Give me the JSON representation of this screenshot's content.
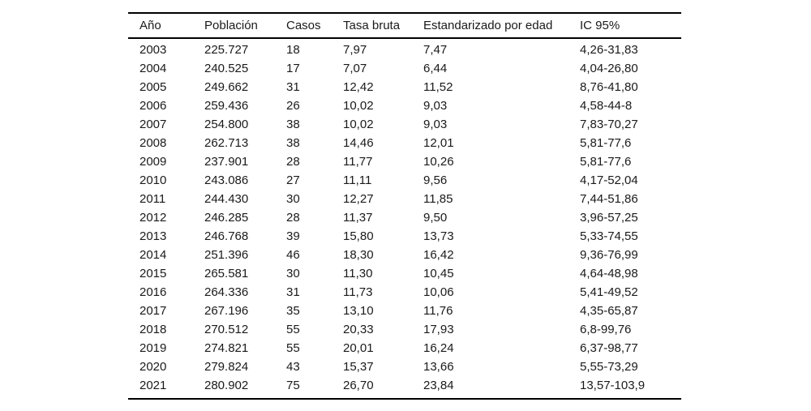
{
  "page": {
    "background_color": "#ffffff",
    "text_color": "#1a1a1a",
    "rule_color": "#000000"
  },
  "table": {
    "columns": [
      "Año",
      "Población",
      "Casos",
      "Tasa bruta",
      "Estandarizado por edad",
      "IC 95%"
    ],
    "rows": [
      [
        "2003",
        "225.727",
        "18",
        "7,97",
        "7,47",
        "4,26-31,83"
      ],
      [
        "2004",
        "240.525",
        "17",
        "7,07",
        "6,44",
        "4,04-26,80"
      ],
      [
        "2005",
        "249.662",
        "31",
        "12,42",
        "11,52",
        "8,76-41,80"
      ],
      [
        "2006",
        "259.436",
        "26",
        "10,02",
        "9,03",
        "4,58-44-8"
      ],
      [
        "2007",
        "254.800",
        "38",
        "10,02",
        "9,03",
        "7,83-70,27"
      ],
      [
        "2008",
        "262.713",
        "38",
        "14,46",
        "12,01",
        "5,81-77,6"
      ],
      [
        "2009",
        "237.901",
        "28",
        "11,77",
        "10,26",
        "5,81-77,6"
      ],
      [
        "2010",
        "243.086",
        "27",
        "11,11",
        "9,56",
        "4,17-52,04"
      ],
      [
        "2011",
        "244.430",
        "30",
        "12,27",
        "11,85",
        "7,44-51,86"
      ],
      [
        "2012",
        "246.285",
        "28",
        "11,37",
        "9,50",
        "3,96-57,25"
      ],
      [
        "2013",
        "246.768",
        "39",
        "15,80",
        "13,73",
        "5,33-74,55"
      ],
      [
        "2014",
        "251.396",
        "46",
        "18,30",
        "16,42",
        "9,36-76,99"
      ],
      [
        "2015",
        "265.581",
        "30",
        "11,30",
        "10,45",
        "4,64-48,98"
      ],
      [
        "2016",
        "264.336",
        "31",
        "11,73",
        "10,06",
        "5,41-49,52"
      ],
      [
        "2017",
        "267.196",
        "35",
        "13,10",
        "11,76",
        "4,35-65,87"
      ],
      [
        "2018",
        "270.512",
        "55",
        "20,33",
        "17,93",
        "6,8-99,76"
      ],
      [
        "2019",
        "274.821",
        "55",
        "20,01",
        "16,24",
        "6,37-98,77"
      ],
      [
        "2020",
        "279.824",
        "43",
        "15,37",
        "13,66",
        "5,55-73,29"
      ],
      [
        "2021",
        "280.902",
        "75",
        "26,70",
        "23,84",
        "13,57-103,9"
      ]
    ]
  },
  "chart_data": {
    "type": "table",
    "title": "",
    "columns": [
      "Año",
      "Población",
      "Casos",
      "Tasa bruta",
      "Estandarizado por edad",
      "IC 95%"
    ],
    "years": [
      2003,
      2004,
      2005,
      2006,
      2007,
      2008,
      2009,
      2010,
      2011,
      2012,
      2013,
      2014,
      2015,
      2016,
      2017,
      2018,
      2019,
      2020,
      2021
    ],
    "poblacion": [
      225727,
      240525,
      249662,
      259436,
      254800,
      262713,
      237901,
      243086,
      244430,
      246285,
      246768,
      251396,
      265581,
      264336,
      267196,
      270512,
      274821,
      279824,
      280902
    ],
    "casos": [
      18,
      17,
      31,
      26,
      38,
      38,
      28,
      27,
      30,
      28,
      39,
      46,
      30,
      31,
      35,
      55,
      55,
      43,
      75
    ],
    "tasa_bruta": [
      7.97,
      7.07,
      12.42,
      10.02,
      10.02,
      14.46,
      11.77,
      11.11,
      12.27,
      11.37,
      15.8,
      18.3,
      11.3,
      11.73,
      13.1,
      20.33,
      20.01,
      15.37,
      26.7
    ],
    "estandarizado_por_edad": [
      7.47,
      6.44,
      11.52,
      9.03,
      9.03,
      12.01,
      10.26,
      9.56,
      11.85,
      9.5,
      13.73,
      16.42,
      10.45,
      10.06,
      11.76,
      17.93,
      16.24,
      13.66,
      23.84
    ],
    "ic_95": [
      "4,26-31,83",
      "4,04-26,80",
      "8,76-41,80",
      "4,58-44-8",
      "7,83-70,27",
      "5,81-77,6",
      "5,81-77,6",
      "4,17-52,04",
      "7,44-51,86",
      "3,96-57,25",
      "5,33-74,55",
      "9,36-76,99",
      "4,64-48,98",
      "5,41-49,52",
      "4,35-65,87",
      "6,8-99,76",
      "6,37-98,77",
      "5,55-73,29",
      "13,57-103,9"
    ]
  }
}
